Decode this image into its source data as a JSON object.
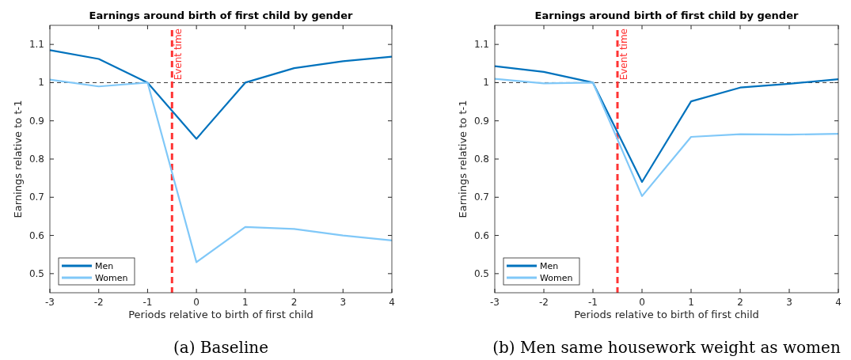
{
  "chart_data": [
    {
      "type": "line",
      "title": "Earnings around birth of first child by gender",
      "xlabel": "Periods relative to birth of first child",
      "ylabel": "Earnings relative to t-1",
      "x": [
        -3,
        -2,
        -1,
        0,
        1,
        2,
        3,
        4
      ],
      "xlim": [
        -3,
        4
      ],
      "xticks": [
        -3,
        -2,
        -1,
        0,
        1,
        2,
        3,
        4
      ],
      "ylim": [
        0.45,
        1.15
      ],
      "yticks": [
        0.5,
        0.6,
        0.7,
        0.8,
        0.9,
        1,
        1.1
      ],
      "legend": "bottom left",
      "grid": false,
      "line_style": "solid",
      "marker": "none",
      "series": [
        {
          "name": "Men",
          "color": "#0072bd",
          "values": [
            1.085,
            1.062,
            1.0,
            0.853,
            1.0,
            1.038,
            1.056,
            1.068
          ]
        },
        {
          "name": "Women",
          "color": "#80c8f8",
          "values": [
            1.008,
            0.99,
            1.0,
            0.53,
            0.622,
            0.617,
            0.6,
            0.587
          ]
        }
      ],
      "ref_lines": [
        {
          "axis": "y",
          "value": 1,
          "label": null,
          "color": "#333333",
          "line_style": "dashed"
        },
        {
          "axis": "x",
          "value": -0.5,
          "label": "Event time",
          "color": "#ff3333",
          "line_style": "dashed"
        }
      ],
      "annotations": [
        "(a) Baseline"
      ]
    },
    {
      "type": "line",
      "title": "Earnings around birth of first child by gender",
      "xlabel": "Periods relative to birth of first child",
      "ylabel": "Earnings relative to t-1",
      "x": [
        -3,
        -2,
        -1,
        0,
        1,
        2,
        3,
        4
      ],
      "xlim": [
        -3,
        4
      ],
      "xticks": [
        -3,
        -2,
        -1,
        0,
        1,
        2,
        3,
        4
      ],
      "ylim": [
        0.45,
        1.15
      ],
      "yticks": [
        0.5,
        0.6,
        0.7,
        0.8,
        0.9,
        1,
        1.1
      ],
      "legend": "bottom left",
      "grid": false,
      "line_style": "solid",
      "marker": "none",
      "series": [
        {
          "name": "Men",
          "color": "#0072bd",
          "values": [
            1.043,
            1.028,
            1.0,
            0.74,
            0.951,
            0.987,
            0.997,
            1.009
          ]
        },
        {
          "name": "Women",
          "color": "#80c8f8",
          "values": [
            1.01,
            0.998,
            1.0,
            0.703,
            0.858,
            0.865,
            0.864,
            0.866
          ]
        }
      ],
      "ref_lines": [
        {
          "axis": "y",
          "value": 1,
          "label": null,
          "color": "#333333",
          "line_style": "dashed"
        },
        {
          "axis": "x",
          "value": -0.5,
          "label": "Event time",
          "color": "#ff3333",
          "line_style": "dashed"
        }
      ],
      "annotations": [
        "(b) Men same housework weight as women"
      ]
    }
  ]
}
